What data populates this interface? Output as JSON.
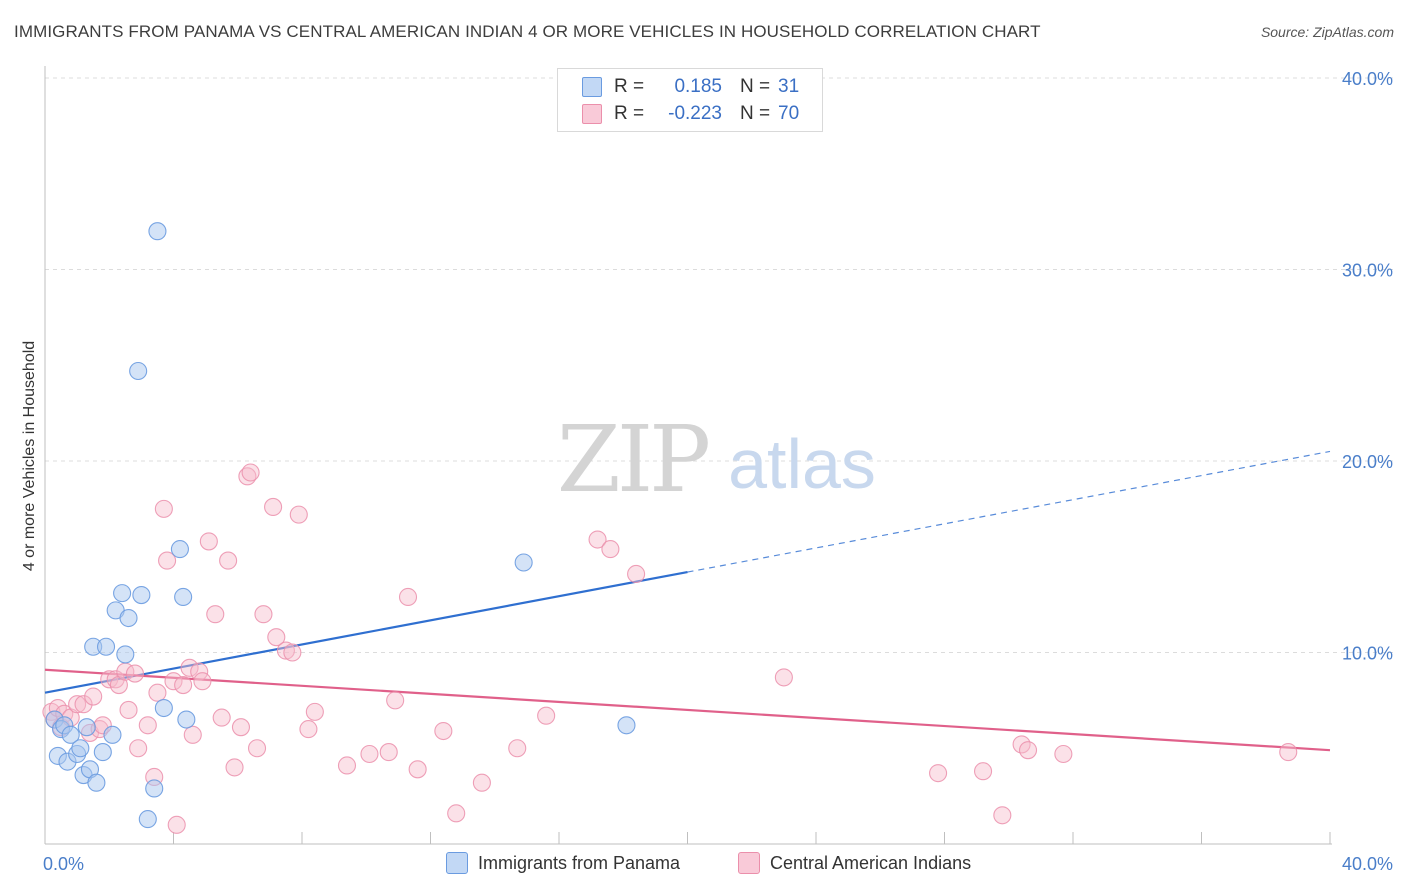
{
  "title": "IMMIGRANTS FROM PANAMA VS CENTRAL AMERICAN INDIAN 4 OR MORE VEHICLES IN HOUSEHOLD CORRELATION CHART",
  "source": "Source: ZipAtlas.com",
  "watermark": {
    "zip": "ZIP",
    "atlas": "atlas"
  },
  "colors": {
    "blue_fill": "#a9c8f0",
    "blue_stroke": "#6a9be0",
    "blue_line": "#2f6fd0",
    "pink_fill": "#f7bccd",
    "pink_stroke": "#eb8fab",
    "pink_line": "#e0608a",
    "accent_text": "#3a6fc4"
  },
  "legend": {
    "rows": [
      {
        "r_label": "R =",
        "r_value": "0.185",
        "n_label": "N =",
        "n_value": "31"
      },
      {
        "r_label": "R =",
        "r_value": "-0.223",
        "n_label": "N =",
        "n_value": "70"
      }
    ]
  },
  "bottom_legend": [
    {
      "label": "Immigrants from Panama"
    },
    {
      "label": "Central American Indians"
    }
  ],
  "chart_data": {
    "type": "scatter",
    "title": "IMMIGRANTS FROM PANAMA VS CENTRAL AMERICAN INDIAN 4 OR MORE VEHICLES IN HOUSEHOLD CORRELATION CHART",
    "xlabel": "",
    "ylabel": "4 or more Vehicles in Household",
    "xlim": [
      0,
      40
    ],
    "ylim": [
      0,
      40
    ],
    "x_tick_labels": [
      "0.0%",
      "40.0%"
    ],
    "y_tick_labels": [
      "10.0%",
      "20.0%",
      "30.0%",
      "40.0%"
    ],
    "y_ticks": [
      10,
      20,
      30,
      40
    ],
    "series": [
      {
        "name": "Immigrants from Panama",
        "color": "blue",
        "r": 0.185,
        "n": 31,
        "trend": {
          "x0": 0,
          "y0": 7.9,
          "x_solid_end": 20,
          "y_solid_end": 14.2,
          "x_dash_end": 40,
          "y_dash_end": 20.5
        },
        "points": [
          [
            0.3,
            6.5
          ],
          [
            0.4,
            4.6
          ],
          [
            0.5,
            6.0
          ],
          [
            0.6,
            6.2
          ],
          [
            0.7,
            4.3
          ],
          [
            0.8,
            5.7
          ],
          [
            1.0,
            4.7
          ],
          [
            1.1,
            5.0
          ],
          [
            1.2,
            3.6
          ],
          [
            1.3,
            6.1
          ],
          [
            1.4,
            3.9
          ],
          [
            1.5,
            10.3
          ],
          [
            1.6,
            3.2
          ],
          [
            1.8,
            4.8
          ],
          [
            1.9,
            10.3
          ],
          [
            2.1,
            5.7
          ],
          [
            2.2,
            12.2
          ],
          [
            2.4,
            13.1
          ],
          [
            2.5,
            9.9
          ],
          [
            2.6,
            11.8
          ],
          [
            2.9,
            24.7
          ],
          [
            3.0,
            13.0
          ],
          [
            3.2,
            1.3
          ],
          [
            3.4,
            2.9
          ],
          [
            3.5,
            32.0
          ],
          [
            3.7,
            7.1
          ],
          [
            4.2,
            15.4
          ],
          [
            4.3,
            12.9
          ],
          [
            4.4,
            6.5
          ],
          [
            14.9,
            14.7
          ],
          [
            18.1,
            6.2
          ]
        ]
      },
      {
        "name": "Central American Indians",
        "color": "pink",
        "r": -0.223,
        "n": 70,
        "trend": {
          "x0": 0,
          "y0": 9.1,
          "x1": 40,
          "y1": 4.9
        },
        "points": [
          [
            0.2,
            6.9
          ],
          [
            0.3,
            6.5
          ],
          [
            0.4,
            7.1
          ],
          [
            0.5,
            6.1
          ],
          [
            0.6,
            6.8
          ],
          [
            0.8,
            6.6
          ],
          [
            1.0,
            7.3
          ],
          [
            1.2,
            7.3
          ],
          [
            1.4,
            5.8
          ],
          [
            1.5,
            7.7
          ],
          [
            1.7,
            6.0
          ],
          [
            1.8,
            6.2
          ],
          [
            2.0,
            8.6
          ],
          [
            2.2,
            8.6
          ],
          [
            2.3,
            8.3
          ],
          [
            2.5,
            9.0
          ],
          [
            2.6,
            7.0
          ],
          [
            2.8,
            8.9
          ],
          [
            2.9,
            5.0
          ],
          [
            3.2,
            6.2
          ],
          [
            3.4,
            3.5
          ],
          [
            3.5,
            7.9
          ],
          [
            3.7,
            17.5
          ],
          [
            3.8,
            14.8
          ],
          [
            4.0,
            8.5
          ],
          [
            4.1,
            1.0
          ],
          [
            4.3,
            8.3
          ],
          [
            4.5,
            9.2
          ],
          [
            4.6,
            5.7
          ],
          [
            4.8,
            9.0
          ],
          [
            4.9,
            8.5
          ],
          [
            5.1,
            15.8
          ],
          [
            5.3,
            12.0
          ],
          [
            5.5,
            6.6
          ],
          [
            5.7,
            14.8
          ],
          [
            5.9,
            4.0
          ],
          [
            6.1,
            6.1
          ],
          [
            6.3,
            19.2
          ],
          [
            6.4,
            19.4
          ],
          [
            6.6,
            5.0
          ],
          [
            6.8,
            12.0
          ],
          [
            7.1,
            17.6
          ],
          [
            7.2,
            10.8
          ],
          [
            7.5,
            10.1
          ],
          [
            7.7,
            10.0
          ],
          [
            7.9,
            17.2
          ],
          [
            8.2,
            6.0
          ],
          [
            8.4,
            6.9
          ],
          [
            9.4,
            4.1
          ],
          [
            10.1,
            4.7
          ],
          [
            10.7,
            4.8
          ],
          [
            10.9,
            7.5
          ],
          [
            11.3,
            12.9
          ],
          [
            11.6,
            3.9
          ],
          [
            12.4,
            5.9
          ],
          [
            12.8,
            1.6
          ],
          [
            13.6,
            3.2
          ],
          [
            14.7,
            5.0
          ],
          [
            15.6,
            6.7
          ],
          [
            17.2,
            15.9
          ],
          [
            17.6,
            15.4
          ],
          [
            18.4,
            14.1
          ],
          [
            23.0,
            8.7
          ],
          [
            27.8,
            3.7
          ],
          [
            29.2,
            3.8
          ],
          [
            29.8,
            1.5
          ],
          [
            30.4,
            5.2
          ],
          [
            30.6,
            4.9
          ],
          [
            31.7,
            4.7
          ],
          [
            38.7,
            4.8
          ]
        ]
      }
    ]
  }
}
